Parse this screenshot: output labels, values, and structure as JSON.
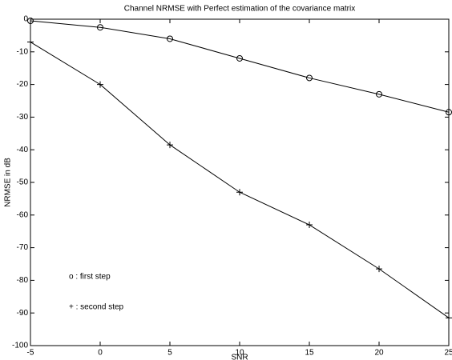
{
  "chart_data": {
    "type": "line",
    "title": "Channel NRMSE with Perfect estimation of the covariance matrix",
    "xlabel": "SNR",
    "ylabel": "NRMSE in dB",
    "x": [
      -5,
      0,
      5,
      10,
      15,
      20,
      25
    ],
    "series": [
      {
        "name": "o : first step",
        "color": "#000000",
        "marker": "o",
        "values": [
          -0.5,
          -2.5,
          -6,
          -12,
          -18,
          -23,
          -28.5
        ]
      },
      {
        "name": "+ : second step",
        "color": "#000000",
        "marker": "+",
        "values": [
          -7,
          -20,
          -38.5,
          -53,
          -63,
          -76.5,
          -91.5
        ]
      }
    ],
    "xlim": [
      -5,
      25
    ],
    "xticks": [
      -5,
      0,
      5,
      10,
      15,
      20,
      25
    ],
    "ylim": [
      -100,
      0
    ],
    "yticks": [
      0,
      -10,
      -20,
      -30,
      -40,
      -50,
      -60,
      -70,
      -80,
      -90,
      -100
    ],
    "grid": false
  }
}
